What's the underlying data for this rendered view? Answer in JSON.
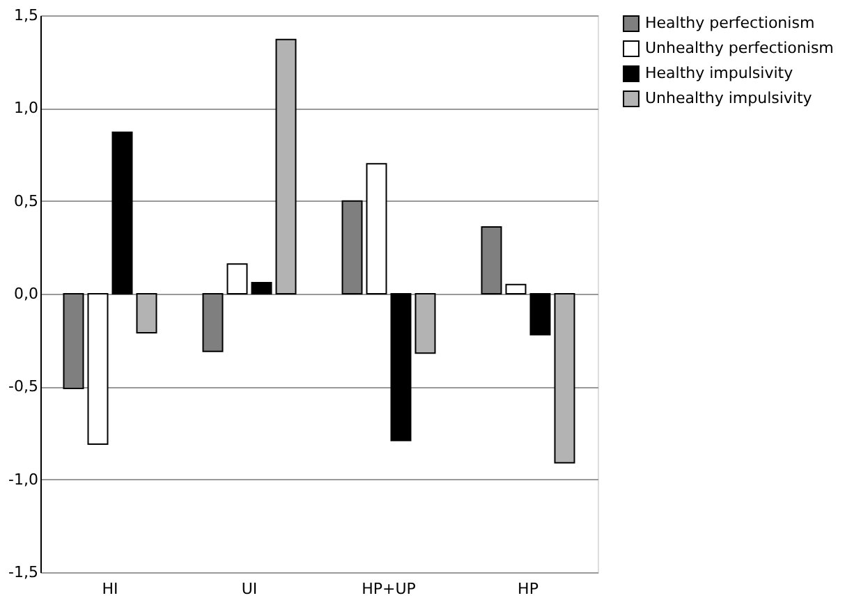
{
  "chart_data": {
    "type": "bar",
    "categories": [
      "HI",
      "UI",
      "HP+UP",
      "HP"
    ],
    "series": [
      {
        "name": "Healthy perfectionism",
        "color": "#7f7f7f",
        "values": [
          -0.51,
          -0.31,
          0.5,
          0.36
        ]
      },
      {
        "name": "Unhealthy perfectionism",
        "color": "#ffffff",
        "values": [
          -0.81,
          0.16,
          0.7,
          0.05
        ]
      },
      {
        "name": "Healthy impulsivity",
        "color": "#000000",
        "values": [
          0.87,
          0.06,
          -0.79,
          -0.22
        ]
      },
      {
        "name": "Unhealthy impulsivity",
        "color": "#b3b3b3",
        "values": [
          -0.21,
          1.37,
          -0.32,
          -0.91
        ]
      }
    ],
    "ylim": [
      -1.5,
      1.5
    ],
    "yticks": [
      {
        "value": -1.5,
        "label": "-1,5"
      },
      {
        "value": -1.0,
        "label": "-1,0"
      },
      {
        "value": -0.5,
        "label": "-0,5"
      },
      {
        "value": 0.0,
        "label": "0,0"
      },
      {
        "value": 0.5,
        "label": "0,5"
      },
      {
        "value": 1.0,
        "label": "1,0"
      },
      {
        "value": 1.5,
        "label": "1,5"
      }
    ],
    "grid": "y",
    "legend": "right"
  }
}
